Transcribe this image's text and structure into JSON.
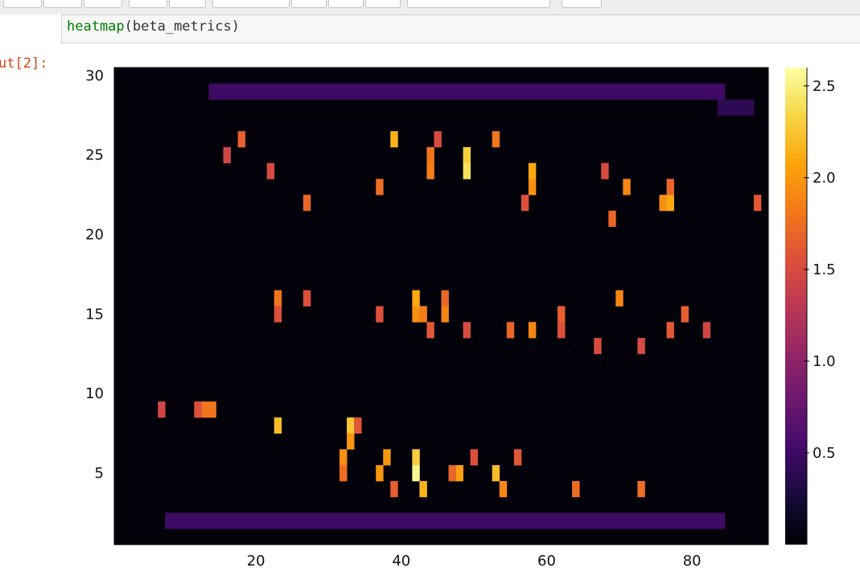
{
  "notebook": {
    "code": {
      "function": "heatmap",
      "args": "(beta_metrics)"
    },
    "output_prompt": "ut[2]:"
  },
  "chart_data": {
    "type": "heatmap",
    "title": "",
    "xlabel": "",
    "ylabel": "",
    "xlim": [
      0.5,
      90.5
    ],
    "ylim": [
      0.5,
      30.5
    ],
    "x_ticks": [
      20,
      40,
      60,
      80
    ],
    "y_ticks": [
      5,
      10,
      15,
      20,
      25,
      30
    ],
    "colorbar": {
      "colormap": "inferno",
      "range": [
        0,
        2.6
      ],
      "ticks": [
        0.5,
        1.0,
        1.5,
        2.0,
        2.5
      ],
      "tick_labels": [
        "0.5",
        "1.0",
        "1.5",
        "2.0",
        "2.5"
      ]
    },
    "grid_size": {
      "columns": 90,
      "rows": 30
    },
    "pattern_description": "three rows of bright glyph-like shapes (rows ~3-10, ~12-18, ~21-27) on a dark near-zero background, framed by dim border lines near rows 2 and 29",
    "bright_cells": [
      {
        "x": 42,
        "y": 5,
        "value": 2.55
      },
      {
        "x": 49,
        "y": 24,
        "value": 2.4
      },
      {
        "x": 49,
        "y": 25,
        "value": 2.3
      },
      {
        "x": 42,
        "y": 6,
        "value": 2.3
      },
      {
        "x": 33,
        "y": 8,
        "value": 2.25
      },
      {
        "x": 23,
        "y": 8,
        "value": 2.2
      },
      {
        "x": 53,
        "y": 5,
        "value": 2.2
      },
      {
        "x": 39,
        "y": 26,
        "value": 2.15
      },
      {
        "x": 43,
        "y": 4,
        "value": 2.15
      },
      {
        "x": 77,
        "y": 22,
        "value": 2.1
      },
      {
        "x": 58,
        "y": 24,
        "value": 2.1
      },
      {
        "x": 42,
        "y": 16,
        "value": 2.1
      },
      {
        "x": 48,
        "y": 5,
        "value": 2.05
      },
      {
        "x": 37,
        "y": 5,
        "value": 2.0
      },
      {
        "x": 38,
        "y": 6,
        "value": 2.0
      },
      {
        "x": 33,
        "y": 7,
        "value": 2.0
      },
      {
        "x": 32,
        "y": 6,
        "value": 1.95
      },
      {
        "x": 42,
        "y": 15,
        "value": 1.95
      },
      {
        "x": 76,
        "y": 22,
        "value": 1.95
      },
      {
        "x": 58,
        "y": 23,
        "value": 1.95
      },
      {
        "x": 71,
        "y": 23,
        "value": 1.9
      },
      {
        "x": 58,
        "y": 14,
        "value": 1.9
      },
      {
        "x": 46,
        "y": 15,
        "value": 1.9
      },
      {
        "x": 70,
        "y": 16,
        "value": 1.9
      },
      {
        "x": 54,
        "y": 4,
        "value": 1.9
      },
      {
        "x": 44,
        "y": 24,
        "value": 1.85
      },
      {
        "x": 43,
        "y": 15,
        "value": 1.85
      },
      {
        "x": 13,
        "y": 9,
        "value": 1.8
      },
      {
        "x": 14,
        "y": 9,
        "value": 1.8
      },
      {
        "x": 44,
        "y": 25,
        "value": 1.8
      },
      {
        "x": 23,
        "y": 16,
        "value": 1.8
      },
      {
        "x": 53,
        "y": 26,
        "value": 1.8
      },
      {
        "x": 73,
        "y": 4,
        "value": 1.75
      },
      {
        "x": 64,
        "y": 4,
        "value": 1.75
      },
      {
        "x": 32,
        "y": 5,
        "value": 1.75
      },
      {
        "x": 37,
        "y": 23,
        "value": 1.75
      },
      {
        "x": 46,
        "y": 16,
        "value": 1.7
      },
      {
        "x": 77,
        "y": 23,
        "value": 1.7
      },
      {
        "x": 69,
        "y": 21,
        "value": 1.7
      },
      {
        "x": 27,
        "y": 22,
        "value": 1.7
      },
      {
        "x": 47,
        "y": 5,
        "value": 1.7
      },
      {
        "x": 55,
        "y": 14,
        "value": 1.7
      },
      {
        "x": 39,
        "y": 4,
        "value": 1.65
      },
      {
        "x": 62,
        "y": 15,
        "value": 1.65
      },
      {
        "x": 79,
        "y": 15,
        "value": 1.65
      },
      {
        "x": 18,
        "y": 26,
        "value": 1.65
      },
      {
        "x": 89,
        "y": 22,
        "value": 1.6
      },
      {
        "x": 44,
        "y": 14,
        "value": 1.6
      },
      {
        "x": 34,
        "y": 8,
        "value": 1.6
      },
      {
        "x": 56,
        "y": 6,
        "value": 1.6
      },
      {
        "x": 77,
        "y": 14,
        "value": 1.6
      },
      {
        "x": 23,
        "y": 15,
        "value": 1.55
      },
      {
        "x": 27,
        "y": 16,
        "value": 1.55
      },
      {
        "x": 12,
        "y": 9,
        "value": 1.55
      },
      {
        "x": 37,
        "y": 15,
        "value": 1.55
      },
      {
        "x": 57,
        "y": 22,
        "value": 1.55
      },
      {
        "x": 62,
        "y": 14,
        "value": 1.55
      },
      {
        "x": 50,
        "y": 6,
        "value": 1.55
      },
      {
        "x": 49,
        "y": 14,
        "value": 1.5
      },
      {
        "x": 22,
        "y": 24,
        "value": 1.5
      },
      {
        "x": 45,
        "y": 26,
        "value": 1.5
      },
      {
        "x": 68,
        "y": 24,
        "value": 1.5
      },
      {
        "x": 67,
        "y": 13,
        "value": 1.5
      },
      {
        "x": 73,
        "y": 13,
        "value": 1.5
      },
      {
        "x": 7,
        "y": 9,
        "value": 1.45
      },
      {
        "x": 16,
        "y": 25,
        "value": 1.45
      },
      {
        "x": 82,
        "y": 14,
        "value": 1.45
      }
    ],
    "dim_border_rows": [
      {
        "y": 2,
        "x_from": 8,
        "x_to": 84,
        "value": 0.5
      },
      {
        "y": 29,
        "x_from": 14,
        "x_to": 84,
        "value": 0.5
      },
      {
        "y": 28,
        "x_from": 84,
        "x_to": 88,
        "value": 0.4
      }
    ]
  }
}
